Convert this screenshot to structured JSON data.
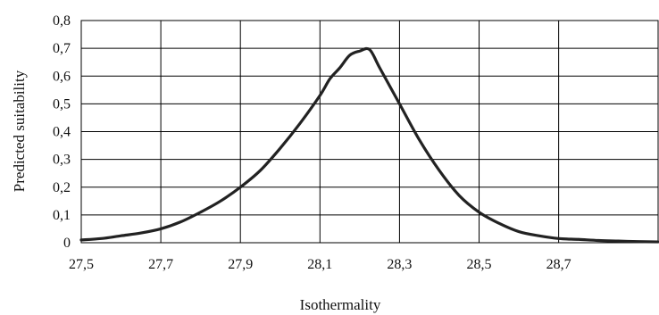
{
  "chart_data": {
    "type": "line",
    "title": "",
    "xlabel": "Isothermality",
    "ylabel": "Predicted suitability",
    "xlim": [
      27.5,
      28.95
    ],
    "ylim": [
      0,
      0.8
    ],
    "grid": true,
    "legend": "none",
    "x_ticks": [
      27.5,
      27.7,
      27.9,
      28.1,
      28.3,
      28.5,
      28.7
    ],
    "x_tick_labels": [
      "27,5",
      "27,7",
      "27,9",
      "28,1",
      "28,3",
      "28,5",
      "28,7"
    ],
    "y_ticks": [
      0,
      0.1,
      0.2,
      0.3,
      0.4,
      0.5,
      0.6,
      0.7,
      0.8
    ],
    "y_tick_labels": [
      "0",
      "0,1",
      "0,2",
      "0,3",
      "0,4",
      "0,5",
      "0,6",
      "0,7",
      "0,8"
    ],
    "line_color": "#222222",
    "series": [
      {
        "x": [
          27.5,
          27.55,
          27.6,
          27.65,
          27.7,
          27.75,
          27.8,
          27.85,
          27.9,
          27.95,
          28.0,
          28.05,
          28.1,
          28.125,
          28.15,
          28.175,
          28.2,
          28.225,
          28.25,
          28.3,
          28.35,
          28.4,
          28.45,
          28.5,
          28.55,
          28.6,
          28.65,
          28.7,
          28.75,
          28.8,
          28.85,
          28.9,
          28.95
        ],
        "y": [
          0.01,
          0.015,
          0.025,
          0.035,
          0.05,
          0.075,
          0.11,
          0.15,
          0.2,
          0.26,
          0.34,
          0.43,
          0.53,
          0.59,
          0.63,
          0.675,
          0.69,
          0.695,
          0.63,
          0.5,
          0.37,
          0.26,
          0.17,
          0.11,
          0.07,
          0.04,
          0.025,
          0.015,
          0.012,
          0.008,
          0.006,
          0.004,
          0.003
        ]
      }
    ]
  }
}
